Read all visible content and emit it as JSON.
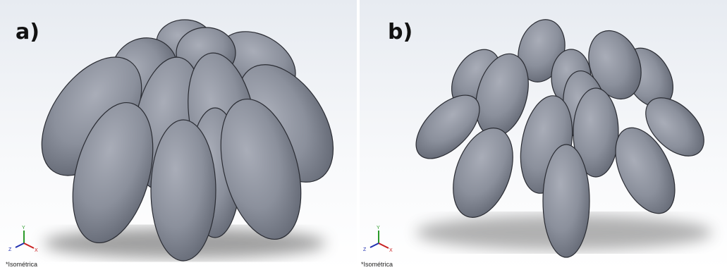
{
  "panels": [
    {
      "label": "a)",
      "view": "*Isométrica",
      "axes": [
        "Y",
        "Z",
        "X"
      ]
    },
    {
      "label": "b)",
      "view": "*Isométrica",
      "axes": [
        "Y",
        "Z",
        "X"
      ]
    }
  ]
}
